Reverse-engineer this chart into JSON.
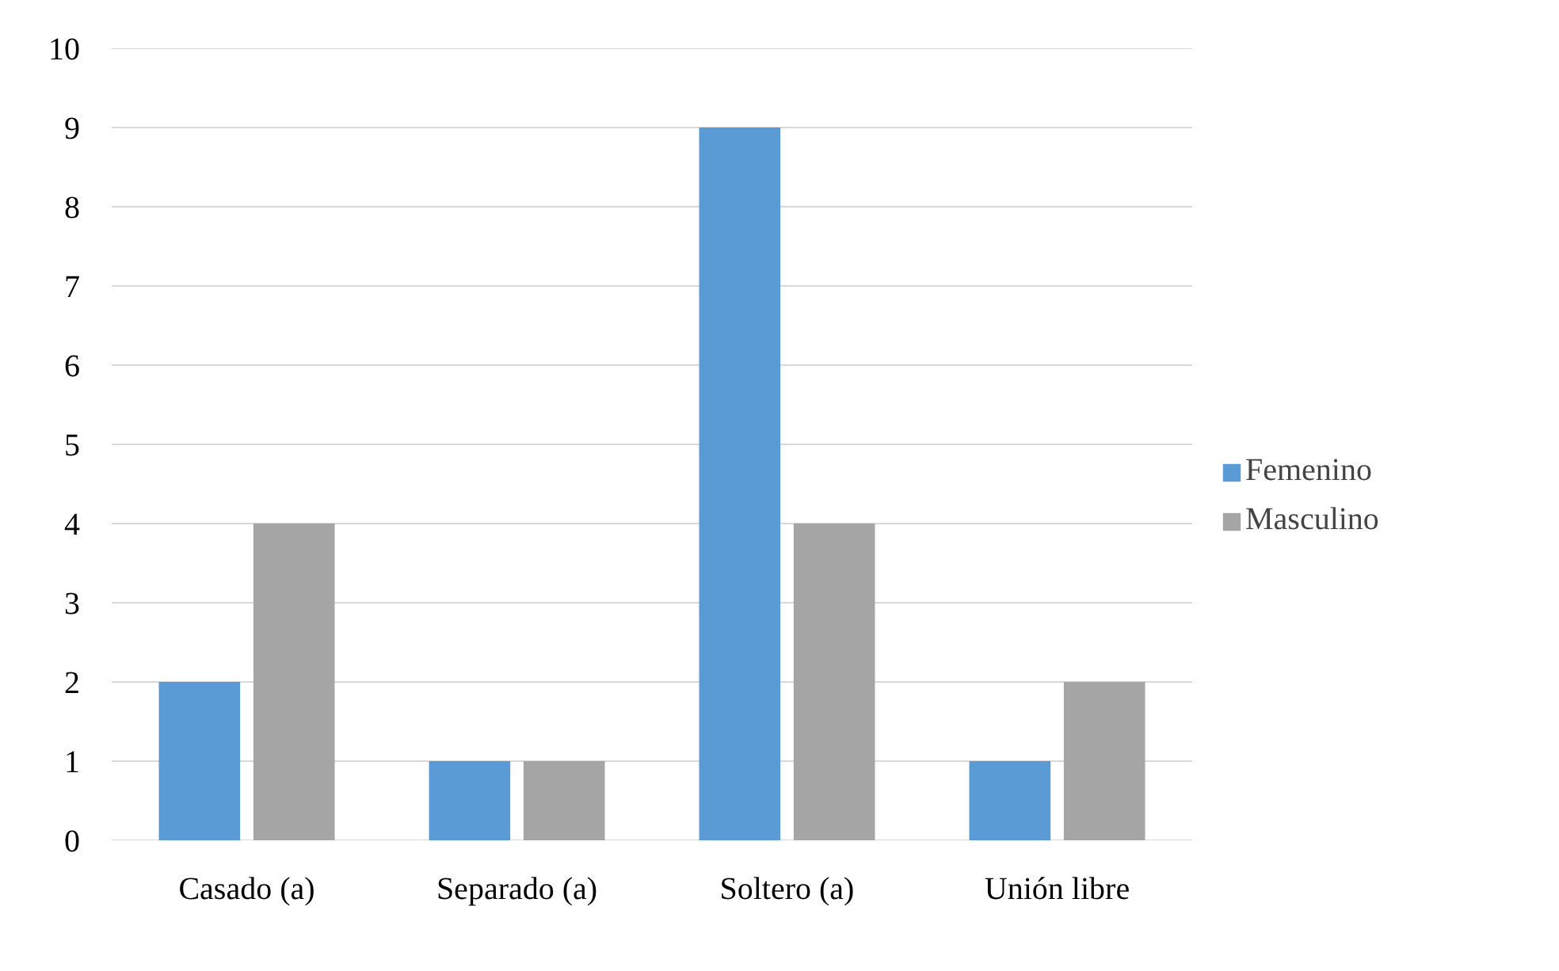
{
  "chart_data": {
    "type": "bar",
    "categories": [
      "Casado (a)",
      "Separado (a)",
      "Soltero (a)",
      "Unión libre"
    ],
    "series": [
      {
        "name": "Femenino",
        "color": "#5b9bd5",
        "values": [
          2,
          1,
          9,
          1
        ]
      },
      {
        "name": "Masculino",
        "color": "#a5a5a5",
        "values": [
          4,
          1,
          4,
          2
        ]
      }
    ],
    "ylim": [
      0,
      10
    ],
    "yticks": [
      0,
      1,
      2,
      3,
      4,
      5,
      6,
      7,
      8,
      9,
      10
    ],
    "grid": "y",
    "legend": "right"
  }
}
